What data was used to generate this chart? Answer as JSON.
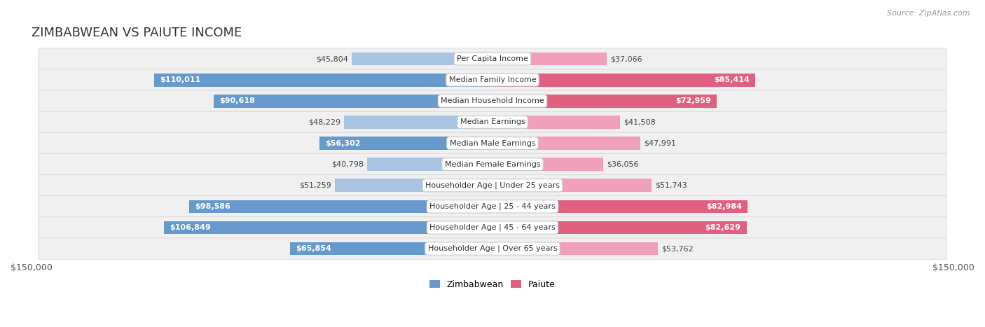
{
  "title": "ZIMBABWEAN VS PAIUTE INCOME",
  "source": "Source: ZipAtlas.com",
  "categories": [
    "Per Capita Income",
    "Median Family Income",
    "Median Household Income",
    "Median Earnings",
    "Median Male Earnings",
    "Median Female Earnings",
    "Householder Age | Under 25 years",
    "Householder Age | 25 - 44 years",
    "Householder Age | 45 - 64 years",
    "Householder Age | Over 65 years"
  ],
  "zimbabwean_values": [
    45804,
    110011,
    90618,
    48229,
    56302,
    40798,
    51259,
    98586,
    106849,
    65854
  ],
  "paiute_values": [
    37066,
    85414,
    72959,
    41508,
    47991,
    36056,
    51743,
    82984,
    82629,
    53762
  ],
  "zimbabwean_labels": [
    "$45,804",
    "$110,011",
    "$90,618",
    "$48,229",
    "$56,302",
    "$40,798",
    "$51,259",
    "$98,586",
    "$106,849",
    "$65,854"
  ],
  "paiute_labels": [
    "$37,066",
    "$85,414",
    "$72,959",
    "$41,508",
    "$47,991",
    "$36,056",
    "$51,743",
    "$82,984",
    "$82,629",
    "$53,762"
  ],
  "zim_color_light": "#a8c4e0",
  "zim_color_dark": "#6699cc",
  "pai_color_light": "#f0a0b8",
  "pai_color_dark": "#e06080",
  "max_value": 150000,
  "bg_color": "#ffffff",
  "row_bg": "#f0f0f0",
  "row_border": "#d8d8d8",
  "xlabel_left": "$150,000",
  "xlabel_right": "$150,000",
  "legend_zim": "Zimbabwean",
  "legend_pai": "Paiute",
  "inside_label_threshold": 55000
}
